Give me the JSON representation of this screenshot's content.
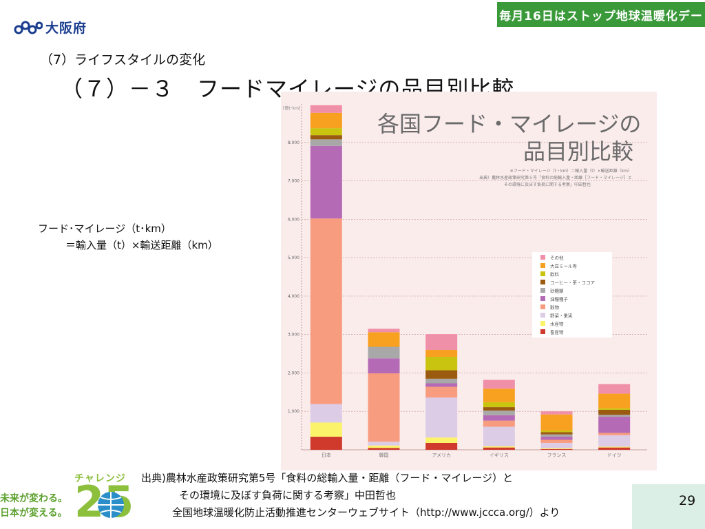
{
  "header": {
    "org_name": "大阪府",
    "banner_text": "毎月16日はストップ地球温暖化デー"
  },
  "slide": {
    "subheading": "（7）ライフスタイルの変化",
    "title": "（７）－３　フードマイレージの品目別比較",
    "formula_line1": "フード･マイレージ（t･km）",
    "formula_line2": "＝輸入量（t）×輸送距離（km）",
    "source_line1": "出典)農林水産政策研究第5号「食料の総輸入量・距離（フード・マイレージ）と",
    "source_line2": "その環境に及ぼす負荷に関する考察」中田哲也",
    "source_line3": "全国地球温暖化防止活動推進センターウェブサイト（http://www.jccca.org/）より",
    "page_number": "29"
  },
  "challenge": {
    "label": "チャレンジ",
    "number": "25",
    "slogan_line1": "未来が変わる。",
    "slogan_line2": "日本が変える。"
  },
  "chart_data": {
    "type": "bar",
    "stacked": true,
    "title": "各国フード・マイレージの品目別比較",
    "title_line1": "各国フード・マイレージの",
    "title_line2": "品目別比較",
    "note_line1": "※フード・マイレージ（t・km）＝輸入量（t）×輸送距離（km）",
    "note_line2": "出典）農林水産政策研究第５号「食料の総輸入量・距離［フード・マイレージ］と",
    "note_line3": "その環境に及ぼす負荷に関する考察」中田哲也",
    "ylabel": "[億t･km]",
    "ylim": [
      0,
      9000
    ],
    "yticks": [
      1000,
      2000,
      3000,
      4000,
      5000,
      6000,
      7000,
      8000
    ],
    "ytick_labels": [
      "1,000",
      "2,000",
      "3,000",
      "4,000",
      "5,000",
      "6,000",
      "7,000",
      "8,000"
    ],
    "grid": true,
    "legend_position": "right",
    "categories": [
      "日本",
      "韓国",
      "アメリカ",
      "イギリス",
      "フランス",
      "ドイツ"
    ],
    "series": [
      {
        "name": "畜産物",
        "color": "#d03a2c",
        "values": [
          340,
          50,
          180,
          60,
          20,
          60
        ]
      },
      {
        "name": "水産物",
        "color": "#fbf36a",
        "values": [
          370,
          60,
          140,
          30,
          20,
          20
        ]
      },
      {
        "name": "野菜・果実",
        "color": "#dccce6",
        "values": [
          480,
          100,
          1040,
          510,
          140,
          300
        ]
      },
      {
        "name": "穀物",
        "color": "#f89c80",
        "values": [
          4830,
          1780,
          280,
          160,
          80,
          60
        ]
      },
      {
        "name": "油糧種子",
        "color": "#b46ab4",
        "values": [
          1890,
          390,
          90,
          140,
          80,
          420
        ]
      },
      {
        "name": "砂糖類",
        "color": "#a8a8a8",
        "values": [
          170,
          300,
          120,
          120,
          60,
          50
        ]
      },
      {
        "name": "コーヒー・茶・ココア",
        "color": "#9a5a10",
        "values": [
          110,
          0,
          220,
          90,
          60,
          130
        ]
      },
      {
        "name": "飲料",
        "color": "#c8c410",
        "values": [
          180,
          0,
          350,
          130,
          40,
          40
        ]
      },
      {
        "name": "大豆ミール等",
        "color": "#f8a020",
        "values": [
          400,
          380,
          180,
          350,
          420,
          380
        ]
      },
      {
        "name": "その他",
        "color": "#f090a8",
        "values": [
          200,
          90,
          410,
          230,
          80,
          250
        ]
      }
    ]
  }
}
